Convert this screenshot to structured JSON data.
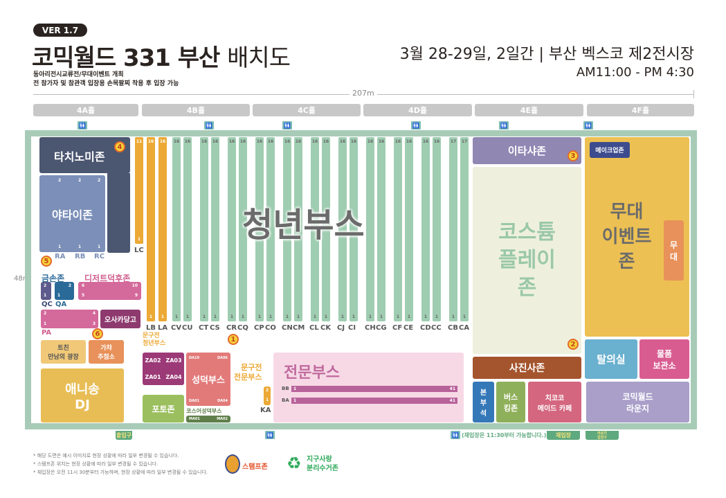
{
  "header": {
    "version": "VER 1.7",
    "title_bold": "코믹월드 331 부산",
    "title_light": "배치도",
    "sub1": "동아리전시교류전/무대이벤트 개최",
    "sub2": "전 참가자 및 참관객 입장용 손목팔찌 착용 후 입장 가능",
    "date": "3월 28-29일, 2일간 | 부산 벡스코 제2전시장",
    "time": "AM11:00 - PM 4:30"
  },
  "dimensions": {
    "width": "207m",
    "height": "48m"
  },
  "halls": [
    "4A홀",
    "4B홀",
    "4C홀",
    "4D홀",
    "4E홀",
    "4F홀"
  ],
  "restroom_icon": "restroom-icon",
  "orange_columns": [
    {
      "label": "LC",
      "top": "11",
      "bottom": "1"
    },
    {
      "label": "LB",
      "top": "16",
      "bottom": "1"
    },
    {
      "label": "LA",
      "top": "16",
      "bottom": "1"
    }
  ],
  "green_columns": [
    {
      "label": "CV",
      "top": "16",
      "bottom": "1"
    },
    {
      "label": "CU",
      "top": "16",
      "bottom": "1"
    },
    {
      "label": "CT",
      "top": "16",
      "bottom": "1"
    },
    {
      "label": "CS",
      "top": "16",
      "bottom": "1"
    },
    {
      "label": "CR",
      "top": "16",
      "bottom": "1"
    },
    {
      "label": "CQ",
      "top": "16",
      "bottom": "1"
    },
    {
      "label": "CP",
      "top": "16",
      "bottom": "1"
    },
    {
      "label": "CO",
      "top": "16",
      "bottom": "1"
    },
    {
      "label": "CN",
      "top": "16",
      "bottom": "1"
    },
    {
      "label": "CM",
      "top": "16",
      "bottom": "1"
    },
    {
      "label": "CL",
      "top": "16",
      "bottom": "1"
    },
    {
      "label": "CK",
      "top": "16",
      "bottom": "1"
    },
    {
      "label": "CJ",
      "top": "16",
      "bottom": "1"
    },
    {
      "label": "CI",
      "top": "16",
      "bottom": "1"
    },
    {
      "label": "CH",
      "top": "16",
      "bottom": "1"
    },
    {
      "label": "CG",
      "top": "16",
      "bottom": "1"
    },
    {
      "label": "CF",
      "top": "16",
      "bottom": "1"
    },
    {
      "label": "CE",
      "top": "16",
      "bottom": "1"
    },
    {
      "label": "CD",
      "top": "16",
      "bottom": "1"
    },
    {
      "label": "CC",
      "top": "16",
      "bottom": "1"
    },
    {
      "label": "CB",
      "top": "17",
      "bottom": "1"
    },
    {
      "label": "CA",
      "top": "17",
      "bottom": "1"
    }
  ],
  "zones": {
    "youth": "청년부스",
    "tachinomi": "타치노미존",
    "yatai": "야타이존",
    "yatai_rows": [
      "RA",
      "RB",
      "RC"
    ],
    "yatai_top": "2",
    "yatai_bottom": "1",
    "geumson": "금손존",
    "qc": "QC",
    "qa": "QA",
    "qc_nums": [
      "2",
      "1"
    ],
    "qa_nums": [
      "2",
      "1"
    ],
    "dessert": "디저트덕후존",
    "dessert_nums": [
      "6",
      "10",
      "5",
      "9"
    ],
    "pa": "PA",
    "pa_nums": [
      "2",
      "4",
      "1",
      "3"
    ],
    "osaka": "오사카당고",
    "twitter_1": "트친",
    "twitter_2": "만남의 광장",
    "gacha_1": "가챠",
    "gacha_2": "추첨소",
    "anisong_1": "애니송",
    "anisong_2": "DJ",
    "stationery_youth_1": "문구전",
    "stationery_youth_2": "청년부스",
    "za": [
      "ZA02",
      "ZA03",
      "ZA01",
      "ZA04"
    ],
    "photo": "포토존",
    "seongdeok": "성덕부스",
    "da": [
      "DA10",
      "DA06",
      "DA01",
      "DA04"
    ],
    "cosplayer_seongdeok": "코스어성덕부스",
    "ma": [
      "MA01",
      "MA02"
    ],
    "stationery_pro_1": "문구전",
    "stationery_pro_2": "전문부스",
    "ka": "KA",
    "ka_nums": [
      "2",
      "1"
    ],
    "pro": "전문부스",
    "bb": "BB",
    "ba": "BA",
    "row_start": "1",
    "row_end": "41",
    "itasha": "이타샤존",
    "costume_1": "코스튬",
    "costume_2": "플레이",
    "costume_3": "존",
    "photographer": "사진사존",
    "hq_1": "본",
    "hq_2": "부",
    "hq_3": "석",
    "busking_1": "버스",
    "busking_2": "킹존",
    "maid_1": "치코코",
    "maid_2": "메이드 카페",
    "stage_1": "무대",
    "stage_2": "이벤트",
    "stage_3": "존",
    "makeup": "메이크업존",
    "stage_small_1": "무",
    "stage_small_2": "대",
    "dressing": "탈의실",
    "storage_1": "물품",
    "storage_2": "보관소",
    "lounge_1": "코믹월드",
    "lounge_2": "라운지"
  },
  "markers": [
    "1",
    "2",
    "3",
    "4",
    "5",
    "6"
  ],
  "bottom": {
    "entrance": "출입구",
    "reentry_note": "(재입장은 11:30부터 가능합니다.)",
    "reentry": "재입장",
    "lounge_entrance_1": "라운지",
    "lounge_entrance_2": "입장구"
  },
  "notes": [
    "* 해당 도면은 예시 이미지로 현장 상황에 따라 일부 변경될 수 있습니다.",
    "* 스탬프존 위치는 현장 상황에 따라 일부 변경될 수 있습니다.",
    "* 재입장은 오전 11시 30분부터 가능하며, 현장 상황에 따라 일부 변경될 수 있습니다."
  ],
  "legend": {
    "stamp": "스탬프존",
    "recycle_1": "지구사랑",
    "recycle_2": "분리수거존"
  },
  "colors": {
    "green_booth": "#9fcdb1",
    "orange_booth": "#eca935",
    "frame": "#a8cbb8",
    "pro_bar": "#b8629a"
  }
}
